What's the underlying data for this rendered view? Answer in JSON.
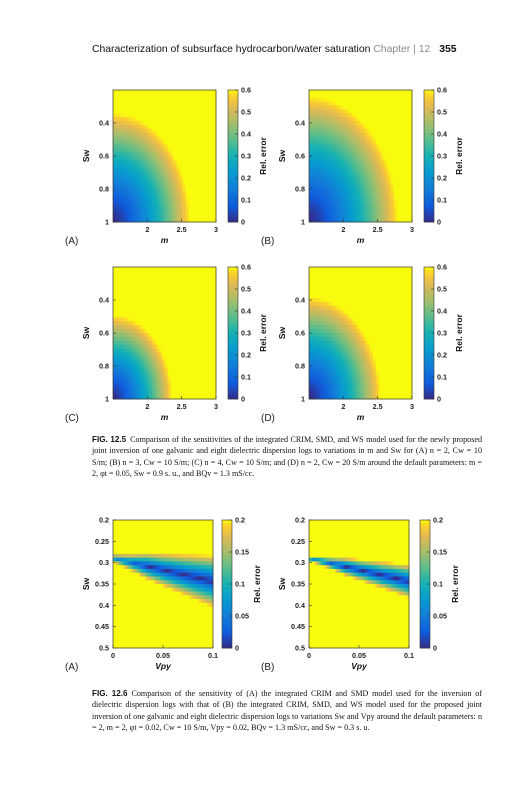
{
  "header": {
    "title": "Characterization of subsurface hydrocarbon/water saturation",
    "chapter": "Chapter",
    "chapter_num": "12",
    "page": "355"
  },
  "captions": {
    "fig1_label": "FIG. 12.5",
    "fig1_text": "Comparison of the sensitivities of the integrated CRIM, SMD, and WS model used for the newly proposed joint inversion of one galvanic and eight dielectric dispersion logs to variations in m and Sw for (A) n = 2, Cw = 10 S/m; (B) n = 3, Cw = 10 S/m; (C) n = 4, Cw = 10 S/m; and (D) n = 2, Cw = 20 S/m around the default parameters: m = 2, φt = 0.05, Sw = 0.9 s. u., and BQv = 1.3 mS/cc.",
    "fig2_label": "FIG. 12.6",
    "fig2_text": "Comparison of the sensitivity of (A) the integrated CRIM and SMD model used for the inversion of dielectric dispersion logs with that of (B) the integrated CRIM, SMD, and WS model used for the proposed joint inversion of one galvanic and eight dielectric dispersion logs to variations Sw and Vpy around the default parameters: n = 2, m = 2, φt = 0.02, Cw = 10 S/m, Vpy = 0.02, BQv = 1.3 mS/cc, and Sw = 0.3 s. u."
  },
  "chart_data": [
    {
      "type": "heatmap",
      "panel": "(A)",
      "xlabel": "m",
      "ylabel": "Sw",
      "colorbar_label": "Rel. error",
      "xlim": [
        1.5,
        3
      ],
      "ylim": [
        0.2,
        1
      ],
      "x_ticks": [
        "2",
        "2.5",
        "3"
      ],
      "y_ticks": [
        "0.4",
        "0.6",
        "0.8",
        "1"
      ],
      "clim": [
        0,
        0.6
      ],
      "cbar_ticks": [
        "0",
        "0.1",
        "0.2",
        "0.3",
        "0.4",
        "0.5",
        "0.6"
      ],
      "colormap": "parula",
      "front_shift": 0.0
    },
    {
      "type": "heatmap",
      "panel": "(B)",
      "xlabel": "m",
      "ylabel": "Sw",
      "colorbar_label": "Rel. error",
      "xlim": [
        1.5,
        3
      ],
      "ylim": [
        0.2,
        1
      ],
      "x_ticks": [
        "2",
        "2.5",
        "3"
      ],
      "y_ticks": [
        "0.4",
        "0.6",
        "0.8",
        "1"
      ],
      "clim": [
        0,
        0.6
      ],
      "cbar_ticks": [
        "0",
        "0.1",
        "0.2",
        "0.3",
        "0.4",
        "0.5",
        "0.6"
      ],
      "colormap": "parula",
      "front_shift": 0.12
    },
    {
      "type": "heatmap",
      "panel": "(C)",
      "xlabel": "m",
      "ylabel": "Sw",
      "colorbar_label": "Rel. error",
      "xlim": [
        1.5,
        3
      ],
      "ylim": [
        0.2,
        1
      ],
      "x_ticks": [
        "2",
        "2.5",
        "3"
      ],
      "y_ticks": [
        "0.4",
        "0.6",
        "0.8",
        "1"
      ],
      "clim": [
        0,
        0.6
      ],
      "cbar_ticks": [
        "0",
        "0.1",
        "0.2",
        "0.3",
        "0.4",
        "0.5",
        "0.6"
      ],
      "colormap": "parula",
      "front_shift": -0.18
    },
    {
      "type": "heatmap",
      "panel": "(D)",
      "xlabel": "m",
      "ylabel": "Sw",
      "colorbar_label": "Rel. error",
      "xlim": [
        1.5,
        3
      ],
      "ylim": [
        0.2,
        1
      ],
      "x_ticks": [
        "2",
        "2.5",
        "3"
      ],
      "y_ticks": [
        "0.4",
        "0.6",
        "0.8",
        "1"
      ],
      "clim": [
        0,
        0.6
      ],
      "cbar_ticks": [
        "0",
        "0.1",
        "0.2",
        "0.3",
        "0.4",
        "0.5",
        "0.6"
      ],
      "colormap": "parula",
      "front_shift": -0.05
    },
    {
      "type": "heatmap",
      "panel": "(A)",
      "xlabel": "Vpy",
      "ylabel": "Sw",
      "colorbar_label": "Rel. error",
      "xlim": [
        0,
        0.1
      ],
      "ylim": [
        0.2,
        0.5
      ],
      "x_ticks": [
        "0",
        "0.05",
        "0.1"
      ],
      "y_ticks": [
        "0.2",
        "0.25",
        "0.3",
        "0.35",
        "0.4",
        "0.45",
        "0.5"
      ],
      "clim": [
        0,
        0.2
      ],
      "cbar_ticks": [
        "0",
        "0.05",
        "0.1",
        "0.15",
        "0.2"
      ],
      "colormap": "parula",
      "valley_width": 0.07
    },
    {
      "type": "heatmap",
      "panel": "(B)",
      "xlabel": "Vpy",
      "ylabel": "Sw",
      "colorbar_label": "Rel. error",
      "xlim": [
        0,
        0.1
      ],
      "ylim": [
        0.2,
        0.5
      ],
      "x_ticks": [
        "0",
        "0.05",
        "0.1"
      ],
      "y_ticks": [
        "0.2",
        "0.25",
        "0.3",
        "0.35",
        "0.4",
        "0.45",
        "0.5"
      ],
      "clim": [
        0,
        0.2
      ],
      "cbar_ticks": [
        "0",
        "0.05",
        "0.1",
        "0.15",
        "0.2"
      ],
      "colormap": "parula",
      "valley_width": 0.045
    }
  ]
}
